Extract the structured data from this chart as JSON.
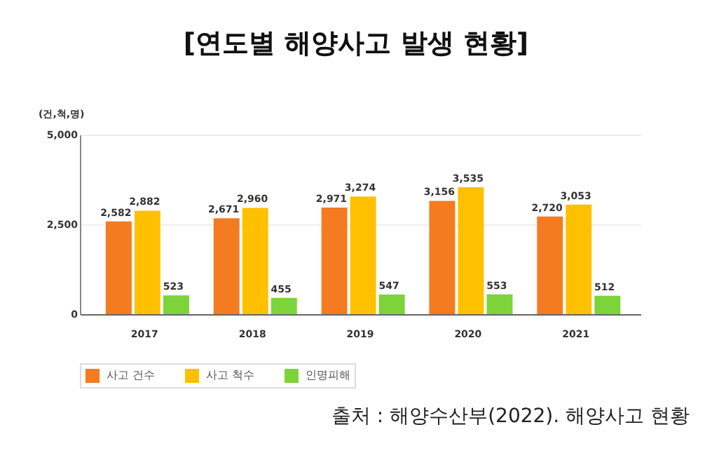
{
  "chart_data": {
    "type": "bar",
    "title": "[연도별 해양사고 발생 현황]",
    "ylabel": "(건,척,명)",
    "categories": [
      "2017",
      "2018",
      "2019",
      "2020",
      "2021"
    ],
    "series": [
      {
        "name": "사고 건수",
        "color": "#f47b20",
        "values": [
          2582,
          2671,
          2971,
          3156,
          2720
        ],
        "value_labels": [
          "2,582",
          "2,671",
          "2,971",
          "3,156",
          "2,720"
        ]
      },
      {
        "name": "사고 척수",
        "color": "#ffc000",
        "values": [
          2882,
          2960,
          3274,
          3535,
          3053
        ],
        "value_labels": [
          "2,882",
          "2,960",
          "3,274",
          "3,535",
          "3,053"
        ]
      },
      {
        "name": "인명피해",
        "color": "#7cd43a",
        "values": [
          523,
          455,
          547,
          553,
          512
        ],
        "value_labels": [
          "523",
          "455",
          "547",
          "553",
          "512"
        ]
      }
    ],
    "ylim": [
      0,
      5000
    ],
    "yticks": [
      0,
      {
        "value": 2500,
        "label": "2,500"
      },
      {
        "value": 5000,
        "label": "5,000"
      }
    ],
    "grid": "y",
    "legend": "bottom",
    "annotations": [
      "출처 : 해양수산부(2022). 해양사고 현황"
    ]
  }
}
